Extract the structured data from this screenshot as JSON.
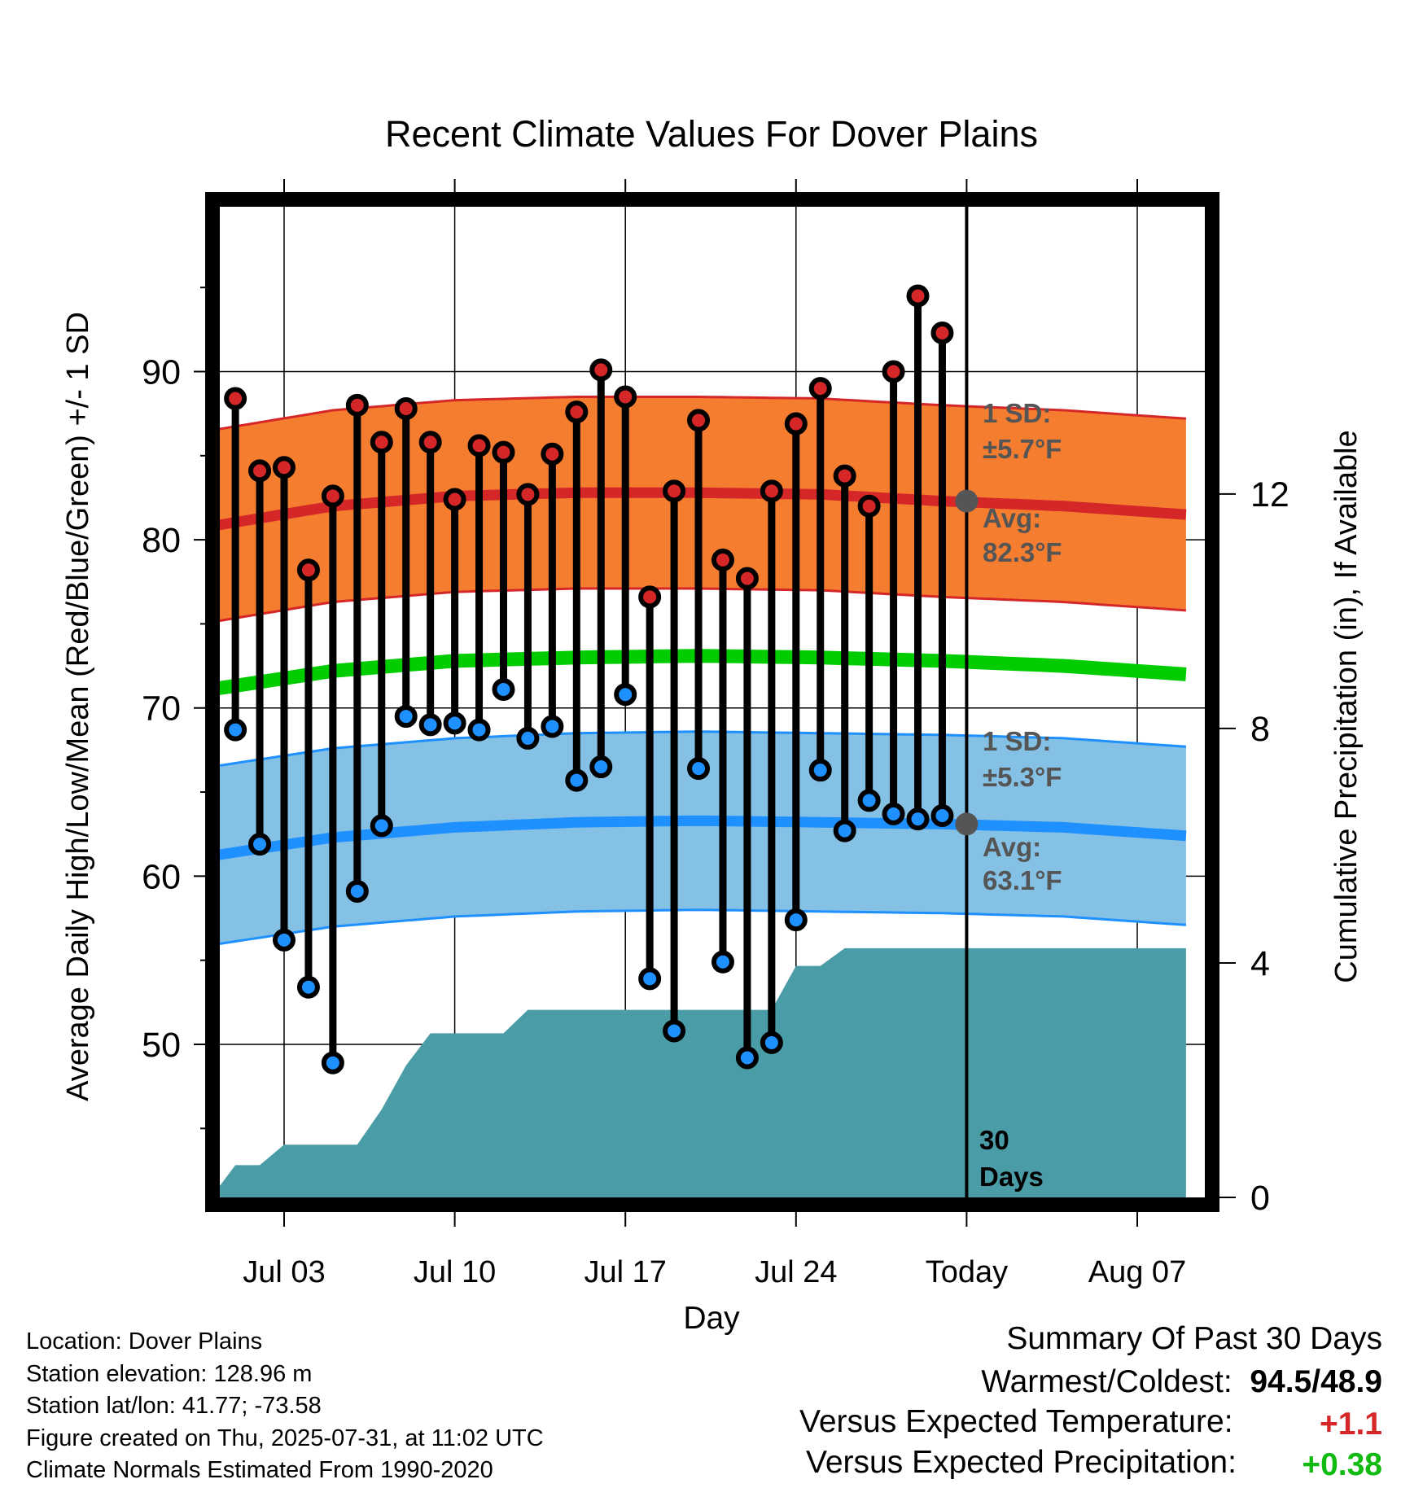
{
  "chart_data": {
    "type": "line",
    "title": "Recent Climate Values For Dover Plains",
    "xlabel": "Day",
    "ylabel": "Average Daily High/Low/Mean (Red/Blue/Green) +/- 1 SD",
    "y2label": "Cumulative Precipitation (in), If Available",
    "ylim": [
      40.9,
      99.8
    ],
    "y2lim": [
      0,
      16.9
    ],
    "yticks": [
      "50",
      "60",
      "70",
      "80",
      "90"
    ],
    "y2ticks": [
      "0",
      "4",
      "8",
      "12"
    ],
    "xticks": [
      "Jul 03",
      "Jul 10",
      "Jul 17",
      "Jul 24",
      "Today",
      "Aug 07"
    ],
    "x_range_days": [
      "2025-06-30",
      "2025-08-10"
    ],
    "today": "2025-07-31",
    "grid": true,
    "series": [
      {
        "name": "High",
        "x": [
          "2025-07-01",
          "2025-07-02",
          "2025-07-03",
          "2025-07-04",
          "2025-07-05",
          "2025-07-06",
          "2025-07-07",
          "2025-07-08",
          "2025-07-09",
          "2025-07-10",
          "2025-07-11",
          "2025-07-12",
          "2025-07-13",
          "2025-07-14",
          "2025-07-15",
          "2025-07-16",
          "2025-07-17",
          "2025-07-18",
          "2025-07-19",
          "2025-07-20",
          "2025-07-21",
          "2025-07-22",
          "2025-07-23",
          "2025-07-24",
          "2025-07-25",
          "2025-07-26",
          "2025-07-27",
          "2025-07-28",
          "2025-07-29",
          "2025-07-30"
        ],
        "values": [
          88.4,
          84.1,
          84.3,
          78.2,
          82.6,
          88.0,
          85.8,
          87.8,
          85.8,
          82.4,
          85.6,
          85.2,
          82.7,
          85.1,
          87.6,
          90.1,
          88.5,
          76.6,
          82.9,
          87.1,
          78.8,
          77.7,
          82.9,
          86.9,
          89.0,
          83.8,
          82.0,
          90.0,
          94.5,
          92.3
        ]
      },
      {
        "name": "Low",
        "x": [
          "2025-07-01",
          "2025-07-02",
          "2025-07-03",
          "2025-07-04",
          "2025-07-05",
          "2025-07-06",
          "2025-07-07",
          "2025-07-08",
          "2025-07-09",
          "2025-07-10",
          "2025-07-11",
          "2025-07-12",
          "2025-07-13",
          "2025-07-14",
          "2025-07-15",
          "2025-07-16",
          "2025-07-17",
          "2025-07-18",
          "2025-07-19",
          "2025-07-20",
          "2025-07-21",
          "2025-07-22",
          "2025-07-23",
          "2025-07-24",
          "2025-07-25",
          "2025-07-26",
          "2025-07-27",
          "2025-07-28",
          "2025-07-29",
          "2025-07-30"
        ],
        "values": [
          68.7,
          61.9,
          56.2,
          53.4,
          48.9,
          59.1,
          63.0,
          69.5,
          69.0,
          69.1,
          68.7,
          71.1,
          68.2,
          68.9,
          65.7,
          66.5,
          70.8,
          53.9,
          50.8,
          66.4,
          54.9,
          49.2,
          50.1,
          57.4,
          66.3,
          62.7,
          64.5,
          63.7,
          63.4,
          63.6
        ]
      },
      {
        "name": "Normal High",
        "x_days": [
          0,
          5,
          10,
          15,
          20,
          25,
          30,
          35,
          40
        ],
        "values": [
          80.8,
          82.0,
          82.6,
          82.8,
          82.8,
          82.7,
          82.3,
          82.0,
          81.5
        ]
      },
      {
        "name": "Normal Low",
        "x_days": [
          0,
          5,
          10,
          15,
          20,
          25,
          30,
          35,
          40
        ],
        "values": [
          61.2,
          62.3,
          62.9,
          63.2,
          63.3,
          63.2,
          63.1,
          62.9,
          62.4
        ]
      },
      {
        "name": "Normal Mean",
        "x_days": [
          0,
          5,
          10,
          15,
          20,
          25,
          30,
          35,
          40
        ],
        "values": [
          71.1,
          72.2,
          72.8,
          73.0,
          73.1,
          73.0,
          72.8,
          72.5,
          72.0
        ]
      },
      {
        "name": "Cumulative Precipitation",
        "x_days": [
          0,
          1,
          2,
          3,
          4,
          5,
          6,
          7,
          8,
          9,
          10,
          11,
          12,
          13,
          14,
          15,
          16,
          17,
          18,
          19,
          20,
          21,
          22,
          23,
          24,
          25,
          26,
          27,
          28,
          29,
          30,
          40
        ],
        "values": [
          0.0,
          0.55,
          0.55,
          0.9,
          0.9,
          0.9,
          0.9,
          1.5,
          2.25,
          2.8,
          2.8,
          2.8,
          2.8,
          3.2,
          3.2,
          3.2,
          3.2,
          3.2,
          3.2,
          3.2,
          3.2,
          3.2,
          3.2,
          3.2,
          3.95,
          3.95,
          4.25,
          4.25,
          4.25,
          4.25,
          4.25,
          4.25
        ]
      }
    ],
    "annotations": {
      "high_sd": "1 SD:",
      "high_sd_val": "±5.7°F",
      "high_avg": "Avg:",
      "high_avg_val": "82.3°F",
      "low_sd": "1 SD:",
      "low_sd_val": "±5.3°F",
      "low_avg": "Avg:",
      "low_avg_val": "63.1°F",
      "days_num": "30",
      "days_word": "Days"
    },
    "sd": {
      "high": 5.7,
      "low": 5.3
    },
    "colors": {
      "high_band": "#f47d30",
      "high_line": "#d62728",
      "low_band": "#85c1e5",
      "low_line": "#1e90ff",
      "mean_line": "#00cc00",
      "precip": "#4a9ca6",
      "high_dot": "#d62728",
      "low_dot": "#1e90ff",
      "avg_marker": "#555555",
      "warm_text": "#d62728",
      "wet_text": "#11bb11"
    }
  },
  "footer": {
    "location": "Location: Dover Plains",
    "elevation": "Station elevation: 128.96 m",
    "latlon": "Station lat/lon: 41.77; -73.58",
    "created": "Figure created on Thu, 2025-07-31, at 11:02 UTC",
    "normals": "Climate Normals Estimated From 1990-2020"
  },
  "summary": {
    "title": "Summary Of Past 30 Days",
    "warmcold_label": "Warmest/Coldest:",
    "warmcold_value": "94.5/48.9",
    "temp_label": "Versus Expected Temperature:",
    "temp_value": "+1.1",
    "precip_label": "Versus Expected Precipitation:",
    "precip_value": "+0.38"
  }
}
